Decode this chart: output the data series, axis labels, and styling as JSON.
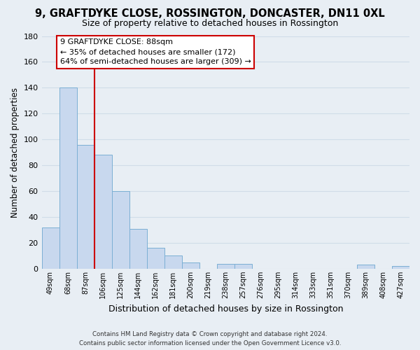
{
  "title": "9, GRAFTDYKE CLOSE, ROSSINGTON, DONCASTER, DN11 0XL",
  "subtitle": "Size of property relative to detached houses in Rossington",
  "xlabel": "Distribution of detached houses by size in Rossington",
  "ylabel": "Number of detached properties",
  "bar_labels": [
    "49sqm",
    "68sqm",
    "87sqm",
    "106sqm",
    "125sqm",
    "144sqm",
    "162sqm",
    "181sqm",
    "200sqm",
    "219sqm",
    "238sqm",
    "257sqm",
    "276sqm",
    "295sqm",
    "314sqm",
    "333sqm",
    "351sqm",
    "370sqm",
    "389sqm",
    "408sqm",
    "427sqm"
  ],
  "bar_values": [
    32,
    140,
    96,
    88,
    60,
    31,
    16,
    10,
    5,
    0,
    4,
    4,
    0,
    0,
    0,
    0,
    0,
    0,
    3,
    0,
    2
  ],
  "bar_color": "#c8d8ee",
  "bar_edge_color": "#7bafd4",
  "vline_color": "#cc0000",
  "ylim": [
    0,
    180
  ],
  "yticks": [
    0,
    20,
    40,
    60,
    80,
    100,
    120,
    140,
    160,
    180
  ],
  "annotation_title": "9 GRAFTDYKE CLOSE: 88sqm",
  "annotation_line1": "← 35% of detached houses are smaller (172)",
  "annotation_line2": "64% of semi-detached houses are larger (309) →",
  "annotation_box_color": "#ffffff",
  "annotation_box_edge": "#cc0000",
  "footer_line1": "Contains HM Land Registry data © Crown copyright and database right 2024.",
  "footer_line2": "Contains public sector information licensed under the Open Government Licence v3.0.",
  "background_color": "#e8eef4",
  "grid_color": "#d0dce8",
  "title_fontsize": 10.5,
  "subtitle_fontsize": 9
}
